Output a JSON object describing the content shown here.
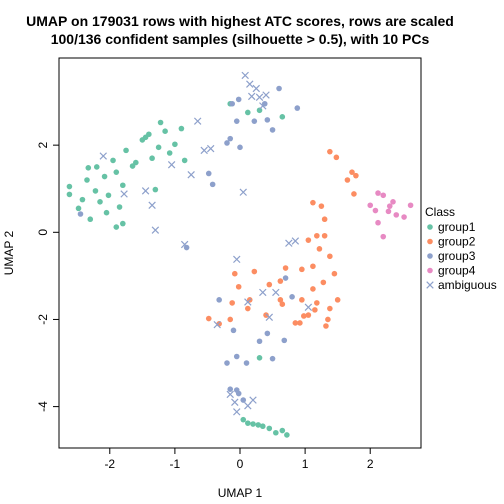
{
  "chart_data": {
    "type": "scatter",
    "title": "UMAP on 179031 rows with highest ATC scores, rows are scaled",
    "subtitle": "100/136 confident samples (silhouette > 0.5), with 10 PCs",
    "xlabel": "UMAP 1",
    "ylabel": "UMAP 2",
    "xlim": [
      -2.78,
      2.78
    ],
    "ylim": [
      -4.95,
      4.0
    ],
    "xticks": [
      -2,
      -1,
      0,
      1,
      2
    ],
    "yticks": [
      -4,
      -2,
      0,
      2
    ],
    "grid": false,
    "legend": {
      "title": "Class",
      "position": "right"
    },
    "series": [
      {
        "name": "group1",
        "color": "#66C2A5",
        "marker": "dot",
        "points": [
          [
            -2.62,
            0.87
          ],
          [
            -2.62,
            1.05
          ],
          [
            -2.48,
            0.55
          ],
          [
            -2.42,
            0.75
          ],
          [
            -2.35,
            1.2
          ],
          [
            -2.33,
            1.48
          ],
          [
            -2.3,
            0.3
          ],
          [
            -2.22,
            0.95
          ],
          [
            -2.2,
            1.5
          ],
          [
            -2.15,
            0.7
          ],
          [
            -2.08,
            1.28
          ],
          [
            -2.05,
            0.45
          ],
          [
            -2.02,
            0.85
          ],
          [
            -1.95,
            1.65
          ],
          [
            -1.9,
            1.38
          ],
          [
            -1.9,
            0.12
          ],
          [
            -1.85,
            0.58
          ],
          [
            -1.8,
            1.08
          ],
          [
            -1.75,
            1.88
          ],
          [
            -1.8,
            0.2
          ],
          [
            -1.65,
            1.52
          ],
          [
            -1.6,
            1.6
          ],
          [
            -1.5,
            2.12
          ],
          [
            -1.45,
            2.18
          ],
          [
            -1.4,
            2.25
          ],
          [
            -1.35,
            1.7
          ],
          [
            -1.3,
            0.98
          ],
          [
            -1.25,
            1.95
          ],
          [
            -1.22,
            2.52
          ],
          [
            -1.15,
            2.32
          ],
          [
            -1.08,
            1.82
          ],
          [
            -1.0,
            2.02
          ],
          [
            -0.9,
            2.38
          ],
          [
            -0.85,
            1.65
          ],
          [
            0.12,
            2.75
          ],
          [
            0.3,
            2.8
          ],
          [
            0.65,
            2.65
          ],
          [
            -0.15,
            2.95
          ],
          [
            0.05,
            -4.3
          ],
          [
            0.12,
            -4.38
          ],
          [
            0.2,
            -4.4
          ],
          [
            0.28,
            -4.42
          ],
          [
            0.35,
            -4.45
          ],
          [
            0.45,
            -4.5
          ],
          [
            0.55,
            -4.6
          ],
          [
            0.65,
            -4.55
          ],
          [
            0.72,
            -4.65
          ],
          [
            0.3,
            -2.88
          ]
        ]
      },
      {
        "name": "group2",
        "color": "#FC8D62",
        "marker": "dot",
        "points": [
          [
            1.38,
            1.85
          ],
          [
            1.48,
            1.72
          ],
          [
            1.72,
            1.38
          ],
          [
            1.65,
            1.2
          ],
          [
            1.78,
            1.3
          ],
          [
            1.75,
            0.88
          ],
          [
            1.25,
            0.6
          ],
          [
            1.12,
            0.68
          ],
          [
            1.3,
            0.3
          ],
          [
            1.18,
            -0.08
          ],
          [
            1.3,
            -0.08
          ],
          [
            1.05,
            -0.18
          ],
          [
            1.22,
            -0.38
          ],
          [
            1.38,
            -0.55
          ],
          [
            1.12,
            -0.78
          ],
          [
            0.95,
            -0.85
          ],
          [
            1.45,
            -0.95
          ],
          [
            1.28,
            -1.15
          ],
          [
            1.12,
            -1.3
          ],
          [
            0.95,
            -1.55
          ],
          [
            1.5,
            -1.55
          ],
          [
            1.38,
            -1.75
          ],
          [
            1.15,
            -1.78
          ],
          [
            1.05,
            -1.9
          ],
          [
            0.92,
            -2.08
          ],
          [
            1.32,
            -2.15
          ],
          [
            0.65,
            -1.65
          ],
          [
            0.45,
            -1.2
          ],
          [
            0.22,
            -0.9
          ],
          [
            0.15,
            -1.55
          ],
          [
            -0.08,
            -0.95
          ],
          [
            -0.02,
            -1.25
          ],
          [
            0.12,
            -1.75
          ],
          [
            -0.15,
            -2.0
          ],
          [
            -0.32,
            -2.1
          ],
          [
            -0.48,
            -1.98
          ],
          [
            -0.12,
            -1.62
          ],
          [
            0.85,
            -2.08
          ],
          [
            0.62,
            -1.55
          ],
          [
            0.98,
            -1.92
          ],
          [
            0.4,
            -1.9
          ],
          [
            0.62,
            -1.12
          ],
          [
            1.35,
            -2.0
          ],
          [
            1.18,
            -1.62
          ],
          [
            0.7,
            -0.82
          ]
        ]
      },
      {
        "name": "group3",
        "color": "#8DA0CB",
        "marker": "dot",
        "points": [
          [
            -0.02,
            3.05
          ],
          [
            -0.12,
            2.95
          ],
          [
            -0.05,
            2.55
          ],
          [
            -0.15,
            2.15
          ],
          [
            -0.2,
            2.05
          ],
          [
            -0.48,
            1.35
          ],
          [
            -0.42,
            1.1
          ],
          [
            0.0,
            1.95
          ],
          [
            0.42,
            2.58
          ],
          [
            0.5,
            2.35
          ],
          [
            0.88,
            2.85
          ],
          [
            0.38,
            2.95
          ],
          [
            0.22,
            2.55
          ],
          [
            0.6,
            3.3
          ],
          [
            -0.82,
            -0.35
          ],
          [
            -0.32,
            -1.55
          ],
          [
            -0.1,
            -2.25
          ],
          [
            -0.05,
            -2.85
          ],
          [
            0.3,
            -2.5
          ],
          [
            0.42,
            -2.32
          ],
          [
            -0.2,
            -3.0
          ],
          [
            0.1,
            -3.0
          ],
          [
            0.5,
            -2.9
          ],
          [
            -0.05,
            -3.62
          ],
          [
            -0.15,
            -3.6
          ],
          [
            -0.02,
            -3.7
          ],
          [
            0.05,
            -3.85
          ],
          [
            0.68,
            -2.48
          ],
          [
            -2.45,
            0.42
          ],
          [
            0.7,
            -1.05
          ],
          [
            0.8,
            -1.48
          ]
        ]
      },
      {
        "name": "group4",
        "color": "#E78AC3",
        "marker": "dot",
        "points": [
          [
            2.12,
            0.9
          ],
          [
            2.2,
            0.85
          ],
          [
            2.0,
            0.62
          ],
          [
            2.08,
            0.5
          ],
          [
            2.3,
            0.6
          ],
          [
            2.4,
            0.4
          ],
          [
            2.28,
            0.48
          ],
          [
            2.52,
            0.35
          ],
          [
            2.62,
            0.62
          ],
          [
            2.12,
            0.22
          ],
          [
            2.2,
            -0.1
          ],
          [
            2.35,
            0.7
          ]
        ]
      },
      {
        "name": "ambiguous",
        "color": "#8DA0CB",
        "marker": "cross",
        "points": [
          [
            0.08,
            3.6
          ],
          [
            0.15,
            3.4
          ],
          [
            0.25,
            3.3
          ],
          [
            0.3,
            3.1
          ],
          [
            0.4,
            3.15
          ],
          [
            0.18,
            3.12
          ],
          [
            0.35,
            2.9
          ],
          [
            -0.65,
            2.55
          ],
          [
            -0.55,
            1.88
          ],
          [
            -0.45,
            1.92
          ],
          [
            -0.75,
            1.32
          ],
          [
            -1.05,
            1.55
          ],
          [
            -1.45,
            0.95
          ],
          [
            -1.35,
            0.62
          ],
          [
            -1.3,
            0.05
          ],
          [
            -1.78,
            0.88
          ],
          [
            -2.1,
            1.75
          ],
          [
            0.05,
            0.92
          ],
          [
            -0.85,
            -0.28
          ],
          [
            -0.05,
            -0.62
          ],
          [
            0.55,
            -1.38
          ],
          [
            0.35,
            -1.38
          ],
          [
            0.12,
            -1.6
          ],
          [
            0.45,
            -1.95
          ],
          [
            -0.15,
            -3.72
          ],
          [
            -0.08,
            -3.9
          ],
          [
            0.2,
            -3.85
          ],
          [
            0.12,
            -3.98
          ],
          [
            -0.05,
            -4.12
          ],
          [
            0.75,
            -0.25
          ],
          [
            0.85,
            -0.2
          ],
          [
            1.05,
            -1.72
          ],
          [
            -0.35,
            -2.12
          ]
        ]
      }
    ]
  }
}
